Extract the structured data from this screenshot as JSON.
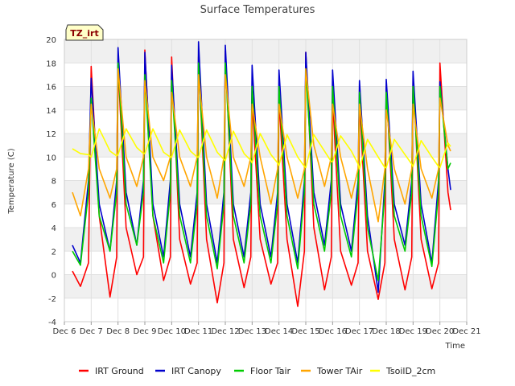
{
  "chart_data": {
    "type": "line",
    "title": "Surface Temperatures",
    "xlabel": "Time",
    "ylabel": "Temperature (C)",
    "badge": "TZ_irt",
    "xlim": [
      6,
      21
    ],
    "ylim": [
      -4,
      20
    ],
    "x_ticks": [
      6,
      7,
      8,
      9,
      10,
      11,
      12,
      13,
      14,
      15,
      16,
      17,
      18,
      19,
      20,
      21
    ],
    "x_tick_labels": [
      "Dec 6",
      "Dec 7",
      "Dec 8",
      "Dec 9",
      "Dec 10",
      "Dec 11",
      "Dec 12",
      "Dec 13",
      "Dec 14",
      "Dec 15",
      "Dec 16",
      "Dec 17",
      "Dec 18",
      "Dec 19",
      "Dec 20",
      "Dec 21"
    ],
    "y_ticks": [
      -4,
      -2,
      0,
      2,
      4,
      6,
      8,
      10,
      12,
      14,
      16,
      18,
      20
    ],
    "y_tick_labels": [
      "-4",
      "-2",
      "0",
      "2",
      "4",
      "6",
      "8",
      "10",
      "12",
      "14",
      "16",
      "18",
      "20"
    ],
    "grid": true,
    "legend_position": "bottom",
    "series": [
      {
        "name": "IRT Ground",
        "color": "#ff0000",
        "x": [
          6.3,
          6.6,
          6.9,
          7.0,
          7.3,
          7.7,
          7.95,
          8.0,
          8.3,
          8.7,
          8.95,
          9.0,
          9.3,
          9.7,
          9.95,
          10.0,
          10.3,
          10.7,
          10.95,
          11.0,
          11.3,
          11.7,
          11.95,
          12.0,
          12.3,
          12.7,
          12.95,
          13.0,
          13.3,
          13.7,
          13.95,
          14.0,
          14.3,
          14.7,
          14.95,
          15.0,
          15.3,
          15.7,
          15.95,
          16.0,
          16.3,
          16.7,
          16.95,
          17.0,
          17.3,
          17.7,
          17.95,
          18.0,
          18.3,
          18.7,
          18.95,
          19.0,
          19.3,
          19.7,
          19.95,
          20.0,
          20.3,
          20.4
        ],
        "y": [
          0.3,
          -1.0,
          1.0,
          17.7,
          5.0,
          -1.9,
          1.5,
          17.8,
          4.0,
          0.0,
          1.5,
          19.1,
          5.0,
          -0.5,
          1.5,
          18.5,
          3.0,
          -0.8,
          1.0,
          18.5,
          3.0,
          -2.4,
          1.0,
          19.0,
          3.0,
          -1.1,
          1.5,
          14.9,
          3.0,
          -0.8,
          1.0,
          15.0,
          3.0,
          -2.7,
          2.0,
          18.9,
          4.0,
          -1.3,
          1.5,
          15.0,
          2.0,
          -0.9,
          1.0,
          14.8,
          2.0,
          -2.1,
          1.0,
          16.0,
          3.0,
          -1.3,
          1.5,
          16.8,
          3.0,
          -1.2,
          1.0,
          18.0,
          7.0,
          5.5
        ]
      },
      {
        "name": "IRT Canopy",
        "color": "#0000cc",
        "x": [
          6.3,
          6.6,
          6.9,
          7.0,
          7.3,
          7.7,
          7.95,
          8.0,
          8.3,
          8.7,
          8.95,
          9.0,
          9.3,
          9.7,
          9.95,
          10.0,
          10.3,
          10.7,
          10.95,
          11.0,
          11.3,
          11.7,
          11.95,
          12.0,
          12.3,
          12.7,
          12.95,
          13.0,
          13.3,
          13.7,
          13.95,
          14.0,
          14.3,
          14.7,
          14.95,
          15.0,
          15.3,
          15.7,
          15.95,
          16.0,
          16.3,
          16.7,
          16.95,
          17.0,
          17.3,
          17.7,
          17.95,
          18.0,
          18.3,
          18.7,
          18.95,
          19.0,
          19.3,
          19.7,
          19.95,
          20.0,
          20.3,
          20.4
        ],
        "y": [
          2.5,
          1.0,
          8.0,
          16.7,
          6.0,
          2.0,
          8.0,
          19.3,
          7.0,
          2.5,
          8.0,
          18.9,
          6.0,
          1.5,
          8.0,
          17.8,
          6.0,
          1.5,
          7.0,
          19.8,
          6.0,
          1.0,
          7.0,
          19.5,
          6.0,
          1.5,
          7.0,
          17.8,
          6.0,
          1.5,
          7.0,
          17.4,
          6.0,
          1.0,
          8.0,
          18.9,
          7.0,
          2.5,
          8.0,
          17.4,
          6.0,
          2.0,
          8.0,
          16.5,
          5.0,
          -1.5,
          8.0,
          16.6,
          6.0,
          2.5,
          8.0,
          17.3,
          6.0,
          1.0,
          8.0,
          16.4,
          9.0,
          7.2
        ]
      },
      {
        "name": "Floor Tair",
        "color": "#00cc00",
        "x": [
          6.3,
          6.6,
          6.9,
          7.0,
          7.3,
          7.7,
          7.95,
          8.0,
          8.3,
          8.7,
          8.95,
          9.0,
          9.3,
          9.7,
          9.95,
          10.0,
          10.3,
          10.7,
          10.95,
          11.0,
          11.3,
          11.7,
          11.95,
          12.0,
          12.3,
          12.7,
          12.95,
          13.0,
          13.3,
          13.7,
          13.95,
          14.0,
          14.3,
          14.7,
          14.95,
          15.0,
          15.3,
          15.7,
          15.95,
          16.0,
          16.3,
          16.7,
          16.95,
          17.0,
          17.3,
          17.7,
          17.95,
          18.0,
          18.3,
          18.7,
          18.95,
          19.0,
          19.3,
          19.7,
          19.95,
          20.0,
          20.3,
          20.4
        ],
        "y": [
          2.0,
          0.8,
          7.0,
          15.0,
          5.0,
          2.0,
          7.0,
          18.0,
          6.0,
          2.5,
          7.0,
          17.0,
          5.0,
          1.0,
          7.0,
          16.5,
          5.0,
          1.0,
          6.0,
          18.0,
          5.0,
          0.5,
          6.0,
          18.0,
          5.0,
          1.0,
          6.0,
          16.0,
          5.0,
          1.0,
          6.0,
          16.0,
          5.0,
          0.5,
          7.0,
          17.5,
          6.0,
          2.0,
          7.0,
          16.0,
          5.0,
          1.5,
          7.0,
          15.5,
          4.0,
          -0.5,
          7.0,
          15.5,
          5.0,
          2.0,
          7.0,
          16.0,
          5.0,
          0.7,
          7.0,
          16.0,
          9.0,
          9.5
        ]
      },
      {
        "name": "Tower TAir",
        "color": "#ffa500",
        "x": [
          6.3,
          6.6,
          6.9,
          7.0,
          7.3,
          7.7,
          7.95,
          8.0,
          8.3,
          8.7,
          8.95,
          9.0,
          9.3,
          9.7,
          9.95,
          10.0,
          10.3,
          10.7,
          10.95,
          11.0,
          11.3,
          11.7,
          11.95,
          12.0,
          12.3,
          12.7,
          12.95,
          13.0,
          13.3,
          13.7,
          13.95,
          14.0,
          14.3,
          14.7,
          14.95,
          15.0,
          15.3,
          15.7,
          15.95,
          16.0,
          16.3,
          16.7,
          16.95,
          17.0,
          17.3,
          17.7,
          17.95,
          18.0,
          18.3,
          18.7,
          18.95,
          19.0,
          19.3,
          19.7,
          19.95,
          20.0,
          20.3,
          20.4
        ],
        "y": [
          7.0,
          5.0,
          9.0,
          14.5,
          9.0,
          6.5,
          9.0,
          17.5,
          10.0,
          7.5,
          10.0,
          16.5,
          10.0,
          8.0,
          10.0,
          15.5,
          10.0,
          7.5,
          10.0,
          17.0,
          10.0,
          6.5,
          10.0,
          17.0,
          10.0,
          7.5,
          10.0,
          14.5,
          10.0,
          6.0,
          9.0,
          14.5,
          10.0,
          6.5,
          9.0,
          17.5,
          11.0,
          7.5,
          10.0,
          14.5,
          10.0,
          6.5,
          9.0,
          14.5,
          9.0,
          4.5,
          9.0,
          14.0,
          9.0,
          6.0,
          9.0,
          14.5,
          9.0,
          6.5,
          9.0,
          15.0,
          11.0,
          10.5
        ]
      },
      {
        "name": "TsoilD_2cm",
        "color": "#ffff00",
        "x": [
          6.3,
          6.6,
          6.9,
          7.0,
          7.3,
          7.7,
          7.95,
          8.0,
          8.3,
          8.7,
          8.95,
          9.0,
          9.3,
          9.7,
          9.95,
          10.0,
          10.3,
          10.7,
          10.95,
          11.0,
          11.3,
          11.7,
          11.95,
          12.0,
          12.3,
          12.7,
          12.95,
          13.0,
          13.3,
          13.7,
          13.95,
          14.0,
          14.3,
          14.7,
          14.95,
          15.0,
          15.3,
          15.7,
          15.95,
          16.0,
          16.3,
          16.7,
          16.95,
          17.0,
          17.3,
          17.7,
          17.95,
          18.0,
          18.3,
          18.7,
          18.95,
          19.0,
          19.3,
          19.7,
          19.95,
          20.0,
          20.3,
          20.4
        ],
        "y": [
          10.7,
          10.3,
          10.2,
          10.0,
          12.4,
          10.5,
          10.1,
          10.2,
          12.4,
          10.8,
          10.3,
          10.3,
          12.4,
          10.4,
          10.0,
          10.0,
          12.3,
          10.5,
          10.0,
          10.0,
          12.3,
          10.4,
          9.8,
          9.7,
          12.2,
          10.3,
          9.7,
          9.5,
          12.0,
          10.2,
          9.5,
          9.3,
          11.9,
          10.0,
          9.2,
          9.1,
          11.9,
          10.5,
          9.6,
          9.6,
          11.8,
          10.5,
          9.4,
          9.0,
          11.5,
          10.0,
          9.1,
          9.1,
          11.5,
          10.2,
          9.4,
          9.2,
          11.4,
          10.0,
          9.2,
          9.1,
          11.2,
          10.9
        ]
      }
    ]
  }
}
